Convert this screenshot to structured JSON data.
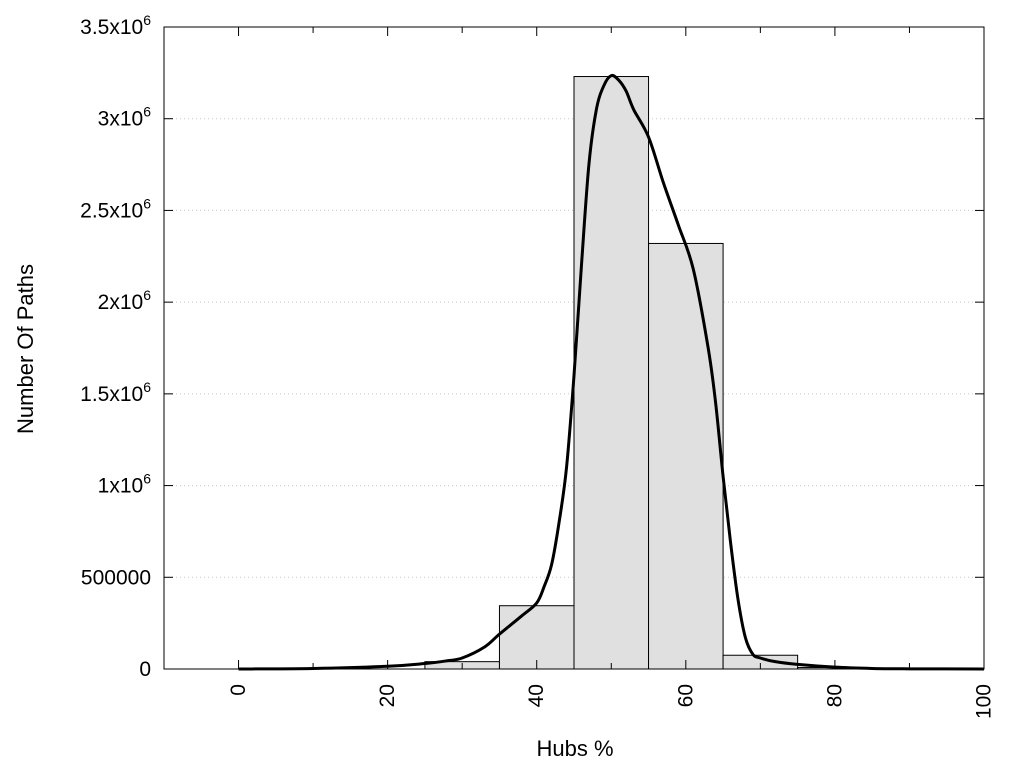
{
  "chart_data": {
    "type": "bar",
    "xlabel": "Hubs %",
    "ylabel": "Number Of Paths",
    "xlim": [
      -10,
      100
    ],
    "ylim": [
      0,
      3500000
    ],
    "grid": "horizontal-dotted",
    "x_ticks": [
      {
        "value": 0,
        "label": "0"
      },
      {
        "value": 20,
        "label": "20"
      },
      {
        "value": 40,
        "label": "40"
      },
      {
        "value": 60,
        "label": "60"
      },
      {
        "value": 80,
        "label": "80"
      },
      {
        "value": 100,
        "label": "100"
      }
    ],
    "y_ticks": [
      {
        "value": 0,
        "base": "0",
        "exp": ""
      },
      {
        "value": 500000,
        "base": "500000",
        "exp": ""
      },
      {
        "value": 1000000,
        "base": "1x10",
        "exp": "6"
      },
      {
        "value": 1500000,
        "base": "1.5x10",
        "exp": "6"
      },
      {
        "value": 2000000,
        "base": "2x10",
        "exp": "6"
      },
      {
        "value": 2500000,
        "base": "2.5x10",
        "exp": "6"
      },
      {
        "value": 3000000,
        "base": "3x10",
        "exp": "6"
      },
      {
        "value": 3500000,
        "base": "3.5x10",
        "exp": "6"
      }
    ],
    "bars": [
      {
        "x0": 25,
        "x1": 35,
        "value": 40000
      },
      {
        "x0": 35,
        "x1": 45,
        "value": 345000
      },
      {
        "x0": 45,
        "x1": 55,
        "value": 3230000
      },
      {
        "x0": 55,
        "x1": 65,
        "value": 2320000
      },
      {
        "x0": 65,
        "x1": 75,
        "value": 75000
      },
      {
        "x0": 75,
        "x1": 85,
        "value": 8000
      }
    ],
    "curve": {
      "x": [
        0,
        10,
        20,
        25,
        28,
        30,
        33,
        35,
        38,
        40,
        41,
        42,
        43,
        44,
        45,
        46,
        47,
        48,
        49,
        50,
        51,
        52,
        53,
        55,
        57,
        59,
        61,
        63,
        64,
        65,
        66,
        67,
        68,
        69,
        70,
        72,
        75,
        80,
        85,
        90,
        100
      ],
      "y": [
        0,
        3000,
        15000,
        30000,
        45000,
        60000,
        120000,
        190000,
        290000,
        360000,
        450000,
        570000,
        800000,
        1100000,
        1600000,
        2200000,
        2750000,
        3050000,
        3180000,
        3235000,
        3210000,
        3150000,
        3050000,
        2900000,
        2650000,
        2420000,
        2180000,
        1750000,
        1450000,
        1050000,
        690000,
        380000,
        170000,
        80000,
        60000,
        40000,
        25000,
        10000,
        3000,
        1000,
        0
      ]
    }
  }
}
